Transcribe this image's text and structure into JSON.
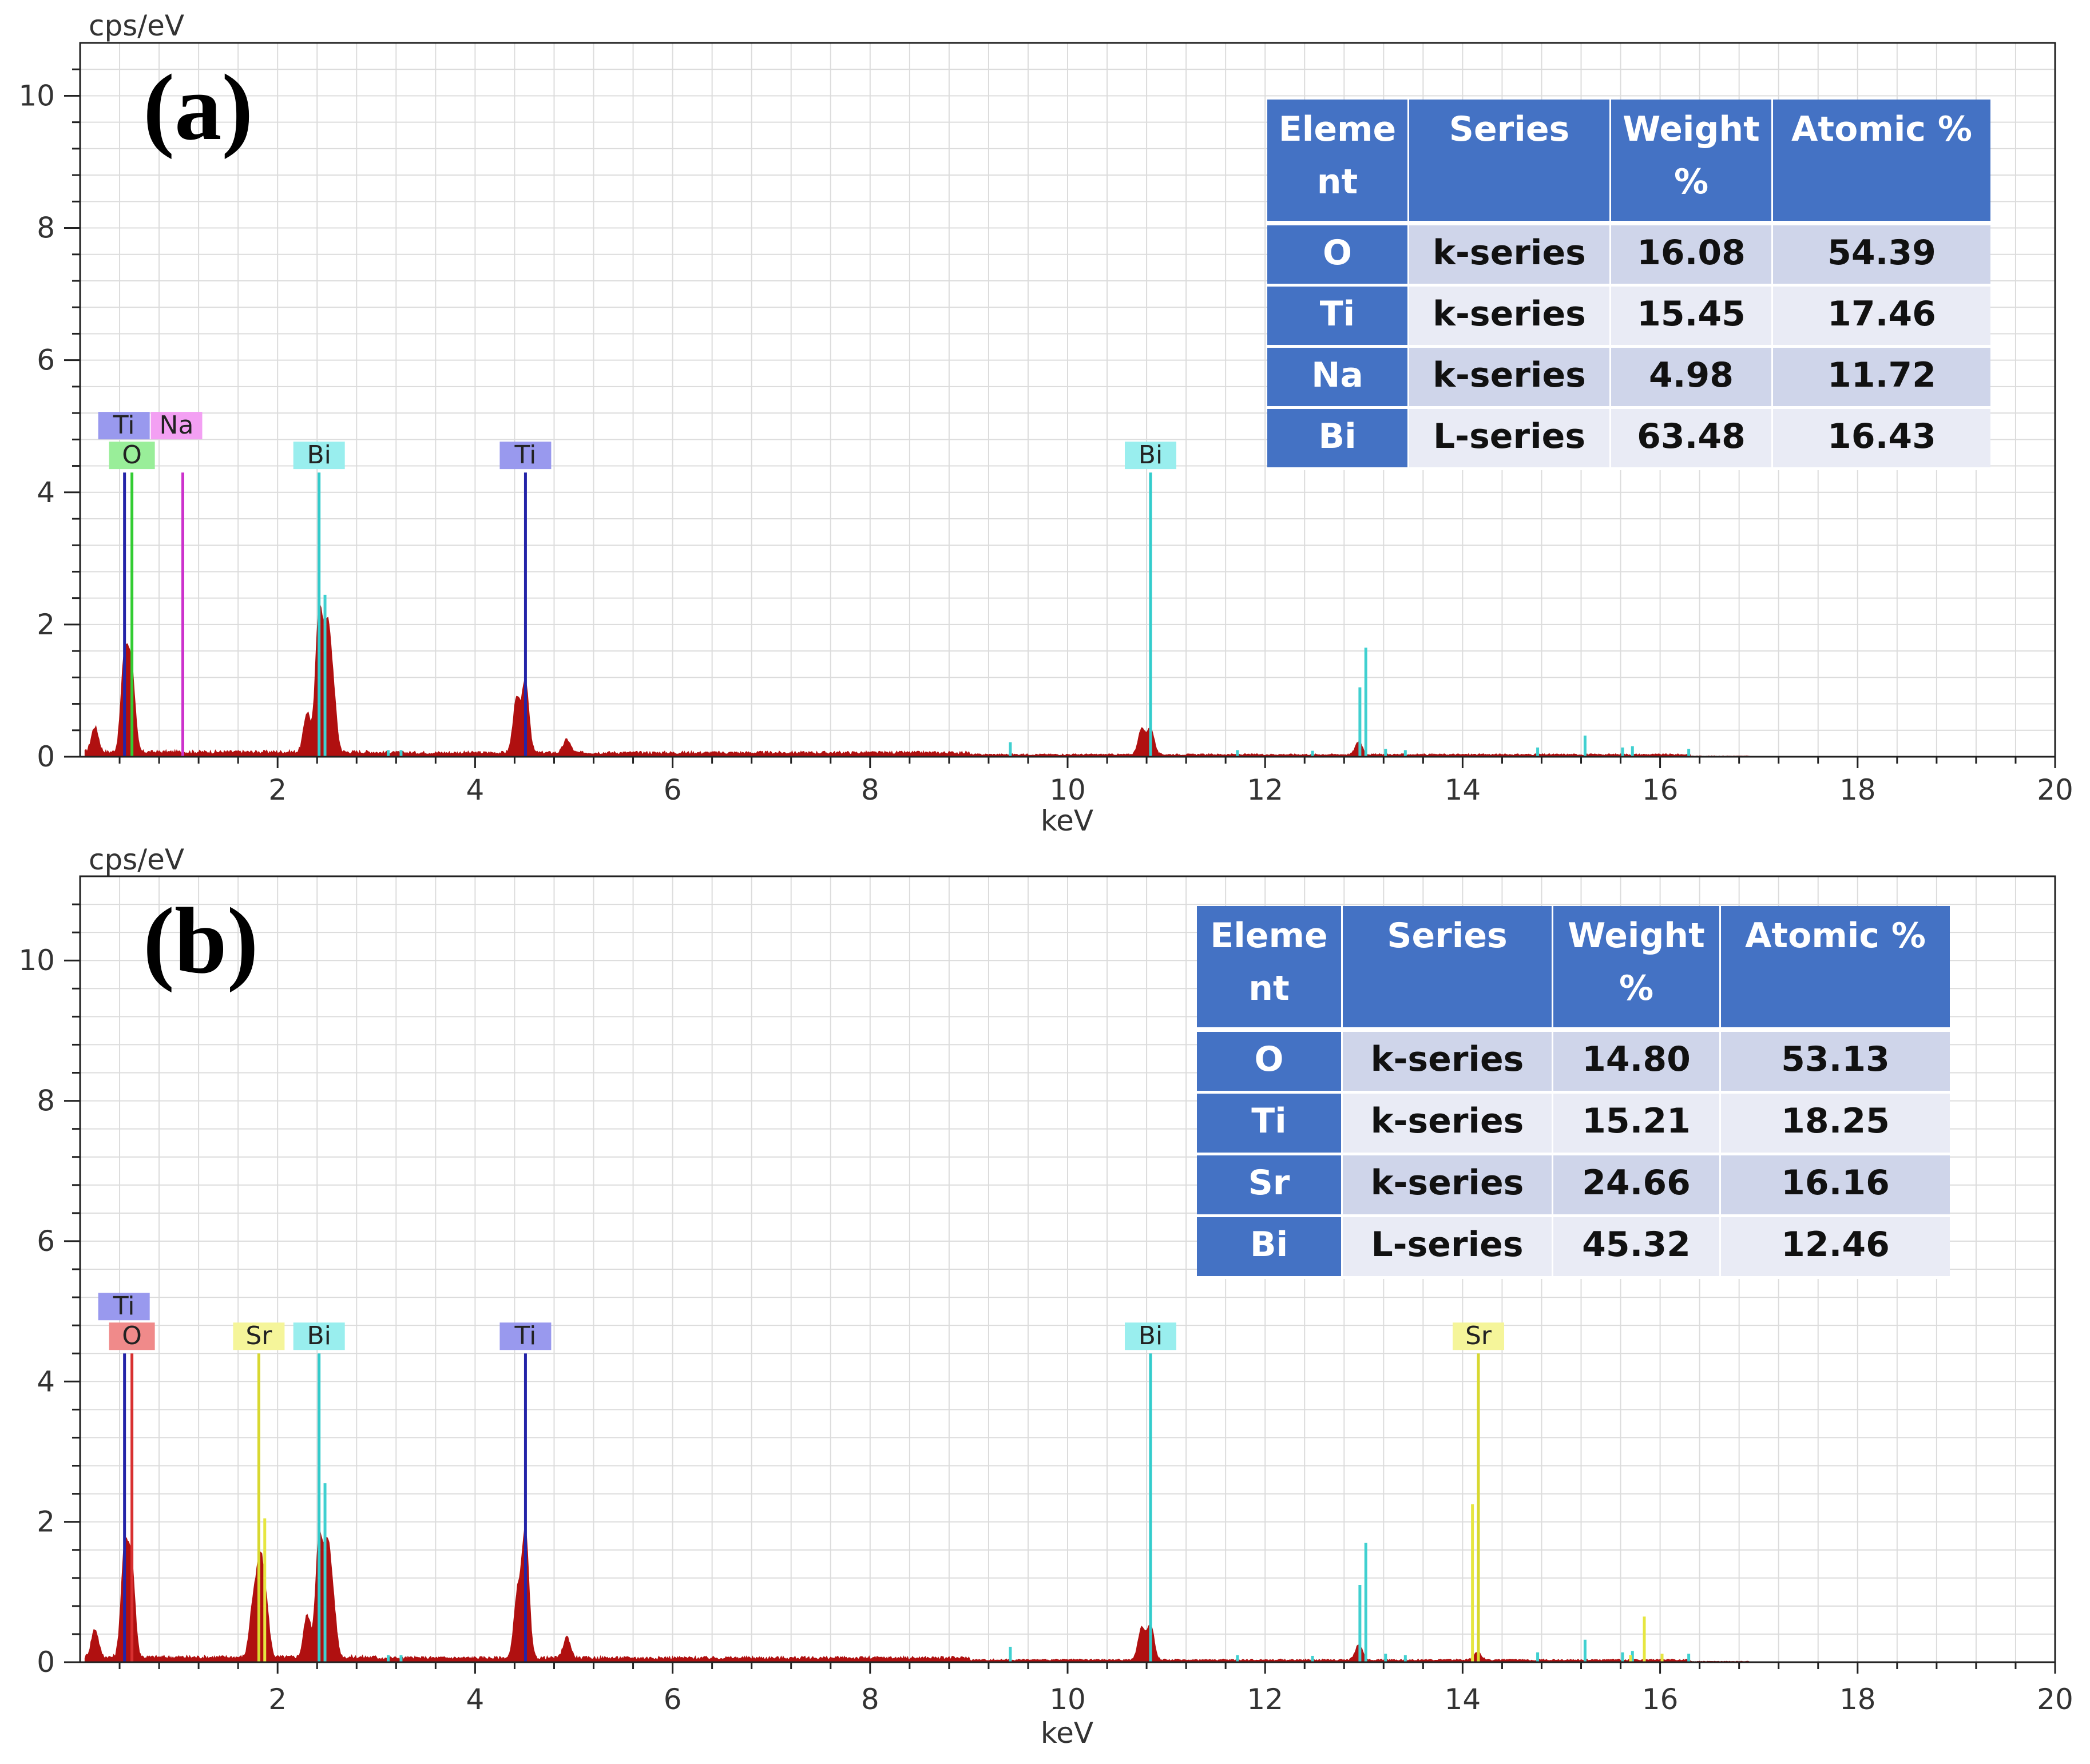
{
  "chart_data": [
    {
      "type": "bar",
      "panel_label": "(a)",
      "ylabel": "cps/eV",
      "xlabel": "keV",
      "xlim": [
        0,
        20
      ],
      "ylim": [
        0,
        10.8
      ],
      "xticks": [
        "2",
        "4",
        "6",
        "8",
        "10",
        "12",
        "14",
        "16",
        "18",
        "20"
      ],
      "yticks": [
        "0",
        "2",
        "4",
        "6",
        "8",
        "10"
      ],
      "grid": true,
      "spectrum": {
        "color": "#b01010",
        "baseline": 0.07,
        "peaks": [
          {
            "x": 0.15,
            "y": 0.38
          },
          {
            "x": 0.45,
            "y": 1.4
          },
          {
            "x": 0.52,
            "y": 1.25
          },
          {
            "x": 2.3,
            "y": 0.6
          },
          {
            "x": 2.42,
            "y": 2.1
          },
          {
            "x": 2.5,
            "y": 1.7
          },
          {
            "x": 2.56,
            "y": 0.85
          },
          {
            "x": 4.42,
            "y": 0.8
          },
          {
            "x": 4.51,
            "y": 1.05
          },
          {
            "x": 4.93,
            "y": 0.2
          },
          {
            "x": 10.75,
            "y": 0.38
          },
          {
            "x": 10.84,
            "y": 0.4
          },
          {
            "x": 12.95,
            "y": 0.2
          }
        ]
      },
      "cyan_sticks": [
        {
          "x": 2.48,
          "y": 2.45
        },
        {
          "x": 9.42,
          "y": 0.22
        },
        {
          "x": 12.96,
          "y": 1.05
        },
        {
          "x": 13.02,
          "y": 1.65
        },
        {
          "x": 13.22,
          "y": 0.12
        },
        {
          "x": 13.42,
          "y": 0.1
        },
        {
          "x": 11.72,
          "y": 0.1
        },
        {
          "x": 12.48,
          "y": 0.09
        },
        {
          "x": 14.76,
          "y": 0.14
        },
        {
          "x": 15.24,
          "y": 0.32
        },
        {
          "x": 15.62,
          "y": 0.14
        },
        {
          "x": 15.72,
          "y": 0.16
        },
        {
          "x": 16.29,
          "y": 0.12
        },
        {
          "x": 3.12,
          "y": 0.1
        },
        {
          "x": 3.25,
          "y": 0.1
        }
      ],
      "element_lines": [
        {
          "element": "Ti",
          "x": 0.45,
          "color": "#2424a8",
          "tag_bg": "#9999ee",
          "tag_row": 1
        },
        {
          "element": "O",
          "x": 0.525,
          "color": "#33cc33",
          "tag_bg": "#99ee99",
          "tag_row": 2
        },
        {
          "element": "Na",
          "x": 1.04,
          "color": "#cc33cc",
          "tag_bg": "#f3a0f3",
          "tag_row": 1
        },
        {
          "element": "Bi",
          "x": 2.42,
          "color": "#33cccc",
          "tag_bg": "#99eeee",
          "tag_row": 2
        },
        {
          "element": "Ti",
          "x": 4.51,
          "color": "#2424a8",
          "tag_bg": "#9999ee",
          "tag_row": 2
        },
        {
          "element": "Bi",
          "x": 10.84,
          "color": "#33cccc",
          "tag_bg": "#99eeee",
          "tag_row": 2
        }
      ],
      "table": {
        "headers": [
          "Eleme nt",
          "Series",
          "Weight %",
          "Atomic %"
        ],
        "rows": [
          [
            "O",
            "k-series",
            "16.08",
            "54.39"
          ],
          [
            "Ti",
            "k-series",
            "15.45",
            "17.46"
          ],
          [
            "Na",
            "k-series",
            "4.98",
            "11.72"
          ],
          [
            "Bi",
            "L-series",
            "63.48",
            "16.43"
          ]
        ]
      }
    },
    {
      "type": "bar",
      "panel_label": "(b)",
      "ylabel": "cps/eV",
      "xlabel": "keV",
      "xlim": [
        0,
        20
      ],
      "ylim": [
        0,
        11.2
      ],
      "xticks": [
        "2",
        "4",
        "6",
        "8",
        "10",
        "12",
        "14",
        "16",
        "18",
        "20"
      ],
      "yticks": [
        "0",
        "2",
        "4",
        "6",
        "8",
        "10"
      ],
      "grid": true,
      "spectrum": {
        "color": "#b01010",
        "baseline": 0.07,
        "peaks": [
          {
            "x": 0.15,
            "y": 0.4
          },
          {
            "x": 0.45,
            "y": 1.45
          },
          {
            "x": 0.52,
            "y": 1.3
          },
          {
            "x": 1.75,
            "y": 0.7
          },
          {
            "x": 1.82,
            "y": 1.25
          },
          {
            "x": 1.88,
            "y": 0.7
          },
          {
            "x": 2.3,
            "y": 0.6
          },
          {
            "x": 2.42,
            "y": 1.65
          },
          {
            "x": 2.5,
            "y": 1.45
          },
          {
            "x": 2.56,
            "y": 0.7
          },
          {
            "x": 4.43,
            "y": 0.9
          },
          {
            "x": 4.51,
            "y": 1.75
          },
          {
            "x": 4.93,
            "y": 0.3
          },
          {
            "x": 10.75,
            "y": 0.45
          },
          {
            "x": 10.84,
            "y": 0.5
          },
          {
            "x": 12.95,
            "y": 0.22
          },
          {
            "x": 14.15,
            "y": 0.12
          }
        ]
      },
      "cyan_sticks": [
        {
          "x": 2.48,
          "y": 2.55
        },
        {
          "x": 9.42,
          "y": 0.22
        },
        {
          "x": 12.96,
          "y": 1.1
        },
        {
          "x": 13.02,
          "y": 1.7
        },
        {
          "x": 13.22,
          "y": 0.12
        },
        {
          "x": 13.42,
          "y": 0.1
        },
        {
          "x": 11.72,
          "y": 0.1
        },
        {
          "x": 12.48,
          "y": 0.09
        },
        {
          "x": 14.76,
          "y": 0.14
        },
        {
          "x": 15.24,
          "y": 0.32
        },
        {
          "x": 15.62,
          "y": 0.14
        },
        {
          "x": 15.72,
          "y": 0.16
        },
        {
          "x": 16.29,
          "y": 0.12
        },
        {
          "x": 3.12,
          "y": 0.1
        },
        {
          "x": 3.25,
          "y": 0.1
        }
      ],
      "yellow_sticks": [
        {
          "x": 1.87,
          "y": 2.05
        },
        {
          "x": 14.1,
          "y": 2.25
        },
        {
          "x": 15.84,
          "y": 0.65
        },
        {
          "x": 16.02,
          "y": 0.12
        },
        {
          "x": 15.7,
          "y": 0.1
        }
      ],
      "element_lines": [
        {
          "element": "Ti",
          "x": 0.45,
          "color": "#2424a8",
          "tag_bg": "#9999ee",
          "tag_row": 1
        },
        {
          "element": "O",
          "x": 0.525,
          "color": "#d83030",
          "tag_bg": "#f08a8a",
          "tag_row": 2
        },
        {
          "element": "Sr",
          "x": 1.81,
          "color": "#d8d830",
          "tag_bg": "#f5f59a",
          "tag_row": 2
        },
        {
          "element": "Bi",
          "x": 2.42,
          "color": "#33cccc",
          "tag_bg": "#99eeee",
          "tag_row": 2
        },
        {
          "element": "Ti",
          "x": 4.51,
          "color": "#2424a8",
          "tag_bg": "#9999ee",
          "tag_row": 2
        },
        {
          "element": "Bi",
          "x": 10.84,
          "color": "#33cccc",
          "tag_bg": "#99eeee",
          "tag_row": 2
        },
        {
          "element": "Sr",
          "x": 14.16,
          "color": "#d8d830",
          "tag_bg": "#f5f59a",
          "tag_row": 2
        }
      ],
      "table": {
        "headers": [
          "Eleme nt",
          "Series",
          "Weight %",
          "Atomic %"
        ],
        "rows": [
          [
            "O",
            "k-series",
            "14.80",
            "53.13"
          ],
          [
            "Ti",
            "k-series",
            "15.21",
            "18.25"
          ],
          [
            "Sr",
            "k-series",
            "24.66",
            "16.16"
          ],
          [
            "Bi",
            "L-series",
            "45.32",
            "12.46"
          ]
        ]
      }
    }
  ],
  "colors": {
    "table_header": "#4472c4",
    "table_row_light": "#e9ebf5",
    "table_row_dark": "#cfd5ea",
    "grid": "#dcdcdc",
    "spectrum": "#b01010"
  }
}
